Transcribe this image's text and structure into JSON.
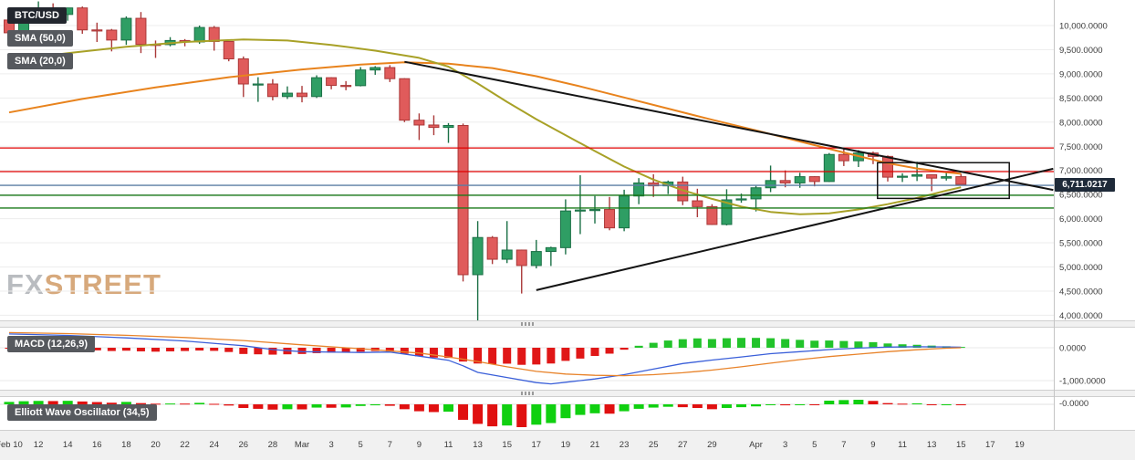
{
  "header": {
    "symbol_label": "BTC/USD"
  },
  "indicators": {
    "sma50_label": "SMA (50,0)",
    "sma20_label": "SMA (20,0)",
    "macd_label": "MACD (12,26,9)",
    "ewo_label": "Elliott Wave Oscillator (34,5)"
  },
  "watermark": {
    "fx": "FX",
    "street": "STREET"
  },
  "current_price": {
    "label": "6,711.0217",
    "value": 6711.0217
  },
  "chart_data": {
    "type": "candlestick",
    "symbol": "BTC/USD",
    "price_axis": {
      "max": 10000,
      "min": 4000,
      "step": 500,
      "values": [
        10000,
        9500,
        9000,
        8500,
        8000,
        7500,
        7000,
        6500,
        6000,
        5500,
        5000,
        4500,
        4000
      ],
      "labels": [
        "10,000.0000",
        "9,500.0000",
        "9,000.0000",
        "8,500.0000",
        "8,000.0000",
        "7,500.0000",
        "7,000.0000",
        "6,500.0000",
        "6,000.0000",
        "5,500.0000",
        "5,000.0000",
        "4,500.0000",
        "4,000.0000"
      ]
    },
    "x_ticks": [
      [
        0,
        "Feb 10"
      ],
      [
        2,
        "12"
      ],
      [
        4,
        "14"
      ],
      [
        6,
        "16"
      ],
      [
        8,
        "18"
      ],
      [
        10,
        "20"
      ],
      [
        12,
        "22"
      ],
      [
        14,
        "24"
      ],
      [
        16,
        "26"
      ],
      [
        18,
        "28"
      ],
      [
        20,
        "Mar"
      ],
      [
        22,
        "3"
      ],
      [
        24,
        "5"
      ],
      [
        26,
        "7"
      ],
      [
        28,
        "9"
      ],
      [
        30,
        "11"
      ],
      [
        32,
        "13"
      ],
      [
        34,
        "15"
      ],
      [
        36,
        "17"
      ],
      [
        38,
        "19"
      ],
      [
        40,
        "21"
      ],
      [
        42,
        "23"
      ],
      [
        44,
        "25"
      ],
      [
        46,
        "27"
      ],
      [
        48,
        "29"
      ],
      [
        51,
        "Apr"
      ],
      [
        53,
        "3"
      ],
      [
        55,
        "5"
      ],
      [
        57,
        "7"
      ],
      [
        59,
        "9"
      ],
      [
        61,
        "11"
      ],
      [
        63,
        "13"
      ],
      [
        65,
        "15"
      ],
      [
        67,
        "17"
      ],
      [
        69,
        "19"
      ]
    ],
    "candles": [
      [
        10115,
        10180,
        9750,
        9850
      ],
      [
        9850,
        10300,
        9730,
        10270
      ],
      [
        10270,
        10500,
        10210,
        10340
      ],
      [
        10340,
        10460,
        10120,
        10230
      ],
      [
        10230,
        10370,
        10100,
        10365
      ],
      [
        10365,
        10395,
        9830,
        9910
      ],
      [
        9910,
        10060,
        9660,
        9905
      ],
      [
        9905,
        9930,
        9465,
        9700
      ],
      [
        9700,
        10190,
        9600,
        10150
      ],
      [
        10150,
        10280,
        9430,
        9610
      ],
      [
        9610,
        9690,
        9330,
        9605
      ],
      [
        9605,
        9760,
        9570,
        9690
      ],
      [
        9690,
        9720,
        9570,
        9660
      ],
      [
        9660,
        10000,
        9620,
        9960
      ],
      [
        9960,
        9990,
        9480,
        9670
      ],
      [
        9670,
        9680,
        9260,
        9310
      ],
      [
        9310,
        9360,
        8520,
        8790
      ],
      [
        8780,
        8930,
        8420,
        8790
      ],
      [
        8790,
        8890,
        8450,
        8530
      ],
      [
        8530,
        8740,
        8480,
        8600
      ],
      [
        8600,
        8750,
        8410,
        8530
      ],
      [
        8530,
        8970,
        8500,
        8920
      ],
      [
        8920,
        8930,
        8680,
        8760
      ],
      [
        8760,
        8850,
        8660,
        8755
      ],
      [
        8755,
        9140,
        8740,
        9080
      ],
      [
        9080,
        9160,
        8980,
        9130
      ],
      [
        9130,
        9180,
        8830,
        8900
      ],
      [
        8900,
        8910,
        8000,
        8040
      ],
      [
        8040,
        8180,
        7630,
        7940
      ],
      [
        7940,
        8140,
        7730,
        7890
      ],
      [
        7890,
        7980,
        7570,
        7930
      ],
      [
        7930,
        7970,
        4700,
        4840
      ],
      [
        4840,
        5950,
        3860,
        5610
      ],
      [
        5610,
        5640,
        5060,
        5160
      ],
      [
        5160,
        5950,
        5080,
        5350
      ],
      [
        5350,
        5360,
        4450,
        5030
      ],
      [
        5030,
        5560,
        4970,
        5320
      ],
      [
        5320,
        5420,
        5020,
        5400
      ],
      [
        5400,
        6400,
        5260,
        6160
      ],
      [
        6160,
        6900,
        5680,
        6180
      ],
      [
        6180,
        6470,
        5900,
        6190
      ],
      [
        6190,
        6450,
        5760,
        5810
      ],
      [
        5810,
        6600,
        5740,
        6470
      ],
      [
        6470,
        6840,
        6300,
        6740
      ],
      [
        6740,
        6920,
        6450,
        6680
      ],
      [
        6680,
        6790,
        6510,
        6760
      ],
      [
        6760,
        6870,
        6280,
        6370
      ],
      [
        6370,
        6620,
        6030,
        6250
      ],
      [
        6250,
        6300,
        5870,
        5880
      ],
      [
        5880,
        6610,
        5860,
        6390
      ],
      [
        6390,
        6520,
        6330,
        6410
      ],
      [
        6410,
        6680,
        6150,
        6640
      ],
      [
        6640,
        7100,
        6550,
        6790
      ],
      [
        6790,
        7000,
        6650,
        6740
      ],
      [
        6740,
        6950,
        6640,
        6870
      ],
      [
        6870,
        6880,
        6670,
        6770
      ],
      [
        6770,
        7360,
        6760,
        7330
      ],
      [
        7330,
        7460,
        7090,
        7200
      ],
      [
        7200,
        7420,
        7070,
        7360
      ],
      [
        7360,
        7390,
        7130,
        7290
      ],
      [
        7290,
        7310,
        6770,
        6860
      ],
      [
        6860,
        6940,
        6760,
        6880
      ],
      [
        6880,
        7180,
        6780,
        6910
      ],
      [
        6910,
        6920,
        6570,
        6840
      ],
      [
        6840,
        6980,
        6790,
        6870
      ],
      [
        6870,
        6930,
        6700,
        6711
      ]
    ],
    "sma50": [
      [
        0,
        8200
      ],
      [
        5,
        8480
      ],
      [
        10,
        8720
      ],
      [
        15,
        8930
      ],
      [
        20,
        9090
      ],
      [
        24,
        9190
      ],
      [
        27,
        9240
      ],
      [
        30,
        9210
      ],
      [
        33,
        9120
      ],
      [
        36,
        8950
      ],
      [
        39,
        8740
      ],
      [
        42,
        8510
      ],
      [
        45,
        8280
      ],
      [
        48,
        8050
      ],
      [
        51,
        7830
      ],
      [
        54,
        7600
      ],
      [
        57,
        7370
      ],
      [
        60,
        7150
      ],
      [
        62,
        7040
      ],
      [
        64,
        6960
      ],
      [
        65,
        6930
      ]
    ],
    "sma20": [
      [
        0,
        9280
      ],
      [
        4,
        9430
      ],
      [
        8,
        9560
      ],
      [
        12,
        9660
      ],
      [
        16,
        9710
      ],
      [
        19,
        9690
      ],
      [
        22,
        9600
      ],
      [
        25,
        9480
      ],
      [
        28,
        9330
      ],
      [
        30,
        9150
      ],
      [
        32,
        8800
      ],
      [
        34,
        8420
      ],
      [
        36,
        8060
      ],
      [
        38,
        7730
      ],
      [
        40,
        7400
      ],
      [
        42,
        7080
      ],
      [
        44,
        6810
      ],
      [
        46,
        6590
      ],
      [
        48,
        6410
      ],
      [
        50,
        6250
      ],
      [
        52,
        6140
      ],
      [
        54,
        6090
      ],
      [
        56,
        6110
      ],
      [
        58,
        6190
      ],
      [
        60,
        6300
      ],
      [
        62,
        6430
      ],
      [
        64,
        6580
      ],
      [
        65,
        6650
      ]
    ],
    "levels": [
      {
        "price": 7465,
        "color": "#e00000",
        "width": 1.2
      },
      {
        "price": 6975,
        "color": "#e00000",
        "width": 1.2
      },
      {
        "price": 6690,
        "color": "#5b7da4",
        "width": 1.4
      },
      {
        "price": 6485,
        "color": "#1a7a1a",
        "width": 1.4
      },
      {
        "price": 6220,
        "color": "#1a7a1a",
        "width": 1.4
      }
    ],
    "trendlines": [
      {
        "i1": 27,
        "p1": 9250,
        "i2": 71.3,
        "p2": 6595
      },
      {
        "i1": 36,
        "p1": 4520,
        "i2": 71.3,
        "p2": 7035
      }
    ],
    "rectangle": {
      "i1": 59.3,
      "i2": 68.3,
      "top": 7160,
      "bottom": 6420
    },
    "macd": {
      "hist": [
        -30,
        -40,
        -35,
        -30,
        -25,
        -60,
        -80,
        -100,
        -90,
        -110,
        -120,
        -110,
        -100,
        -85,
        -95,
        -130,
        -190,
        -200,
        -210,
        -200,
        -190,
        -165,
        -150,
        -140,
        -120,
        -100,
        -115,
        -180,
        -260,
        -300,
        -310,
        -420,
        -480,
        -500,
        -485,
        -520,
        -510,
        -480,
        -400,
        -330,
        -250,
        -180,
        -60,
        60,
        150,
        220,
        260,
        285,
        265,
        290,
        300,
        300,
        290,
        265,
        240,
        215,
        220,
        205,
        190,
        170,
        130,
        105,
        90,
        65,
        45,
        25
      ],
      "macd_line": [
        [
          0,
          420
        ],
        [
          4,
          375
        ],
        [
          8,
          300
        ],
        [
          12,
          205
        ],
        [
          16,
          60
        ],
        [
          18,
          -55
        ],
        [
          20,
          -120
        ],
        [
          24,
          -145
        ],
        [
          26,
          -130
        ],
        [
          28,
          -255
        ],
        [
          30,
          -380
        ],
        [
          31,
          -550
        ],
        [
          32,
          -750
        ],
        [
          34,
          -905
        ],
        [
          36,
          -1060
        ],
        [
          37,
          -1100
        ],
        [
          38,
          -1050
        ],
        [
          40,
          -950
        ],
        [
          42,
          -820
        ],
        [
          44,
          -650
        ],
        [
          46,
          -480
        ],
        [
          48,
          -375
        ],
        [
          50,
          -280
        ],
        [
          52,
          -180
        ],
        [
          54,
          -120
        ],
        [
          56,
          -55
        ],
        [
          58,
          -10
        ],
        [
          60,
          20
        ],
        [
          62,
          30
        ],
        [
          64,
          25
        ],
        [
          65,
          18
        ]
      ],
      "signal_line": [
        [
          0,
          460
        ],
        [
          4,
          430
        ],
        [
          8,
          378
        ],
        [
          12,
          310
        ],
        [
          16,
          220
        ],
        [
          20,
          90
        ],
        [
          24,
          -30
        ],
        [
          28,
          -160
        ],
        [
          30,
          -280
        ],
        [
          32,
          -420
        ],
        [
          34,
          -580
        ],
        [
          36,
          -720
        ],
        [
          38,
          -800
        ],
        [
          40,
          -840
        ],
        [
          42,
          -850
        ],
        [
          44,
          -820
        ],
        [
          46,
          -760
        ],
        [
          48,
          -680
        ],
        [
          50,
          -580
        ],
        [
          52,
          -470
        ],
        [
          54,
          -360
        ],
        [
          56,
          -270
        ],
        [
          58,
          -195
        ],
        [
          60,
          -120
        ],
        [
          62,
          -60
        ],
        [
          64,
          -15
        ],
        [
          65,
          0
        ]
      ],
      "axis_labels": [
        [
          "0.0000",
          0
        ],
        [
          "-1,000.0000",
          -1000
        ]
      ]
    },
    "ewo": {
      "hist": [
        300,
        380,
        420,
        400,
        430,
        350,
        280,
        200,
        300,
        150,
        80,
        100,
        90,
        180,
        60,
        -150,
        -450,
        -550,
        -650,
        -600,
        -620,
        -400,
        -420,
        -380,
        -200,
        -120,
        -180,
        -600,
        -850,
        -950,
        -900,
        -1900,
        -2400,
        -2700,
        -2600,
        -2800,
        -2500,
        -2300,
        -1700,
        -1300,
        -1100,
        -1150,
        -850,
        -550,
        -400,
        -300,
        -350,
        -450,
        -600,
        -450,
        -350,
        -250,
        -100,
        -120,
        -80,
        -100,
        450,
        520,
        560,
        420,
        150,
        80,
        120,
        -60,
        -30,
        -40
      ],
      "axis_labels": [
        [
          "-0.0000",
          0
        ]
      ]
    },
    "colors": {
      "up_fill": "#2f9e64",
      "up_stroke": "#1b7046",
      "down_fill": "#e05b5b",
      "down_stroke": "#aa3838",
      "sma50": "#e8831d",
      "sma20": "#a8a127",
      "trend": "#141414",
      "macd_line": "#3a5fd9",
      "signal_line": "#e8832a",
      "hist_up": "#22c32a",
      "hist_down": "#e01717",
      "ewo_up": "#10d010",
      "ewo_down": "#e01010",
      "grid": "#ededed",
      "axis_border": "#c4c4c4"
    }
  }
}
